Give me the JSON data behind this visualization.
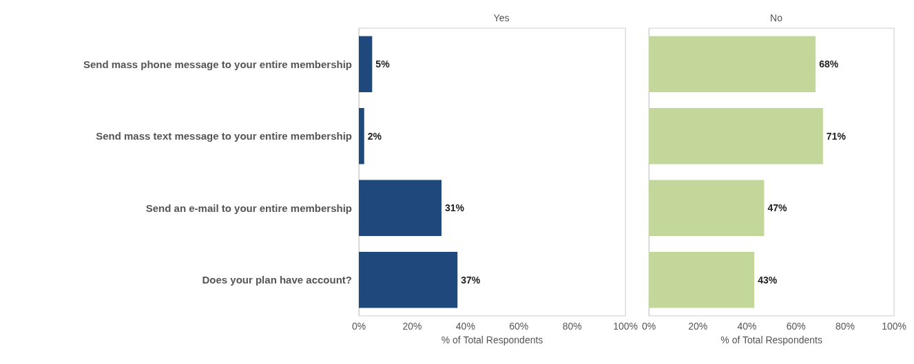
{
  "chart_data": [
    {
      "type": "bar",
      "orientation": "horizontal",
      "title": "Yes",
      "xlabel": "% of Total Respondents",
      "categories": [
        "Send mass phone message to your entire membership",
        "Send mass text message to your entire membership",
        "Send an e-mail to your entire membership",
        "Does your plan have account?"
      ],
      "values": [
        5,
        2,
        31,
        37
      ],
      "value_labels": [
        "5%",
        "2%",
        "31%",
        "37%"
      ],
      "color": "#1f497d",
      "xlim": [
        0,
        100
      ],
      "xticks": [
        {
          "value": 0,
          "label": "0%"
        },
        {
          "value": 20,
          "label": "20%"
        },
        {
          "value": 40,
          "label": "40%"
        },
        {
          "value": 60,
          "label": "60%"
        },
        {
          "value": 80,
          "label": "80%"
        },
        {
          "value": 100,
          "label": "100%"
        }
      ],
      "grid": false
    },
    {
      "type": "bar",
      "orientation": "horizontal",
      "title": "No",
      "xlabel": "% of Total Respondents",
      "categories": [
        null,
        null,
        null,
        null
      ],
      "values": [
        68,
        71,
        47,
        43
      ],
      "value_labels": [
        "68%",
        "71%",
        "47%",
        "43%"
      ],
      "color": "#c4d79b",
      "xlim": [
        0,
        100
      ],
      "xticks": [
        {
          "value": 0,
          "label": "0%"
        },
        {
          "value": 20,
          "label": "20%"
        },
        {
          "value": 40,
          "label": "40%"
        },
        {
          "value": 60,
          "label": "60%"
        },
        {
          "value": 80,
          "label": "80%"
        },
        {
          "value": 100,
          "label": "100%"
        }
      ],
      "grid": false,
      "tick_labels": "x"
    }
  ]
}
